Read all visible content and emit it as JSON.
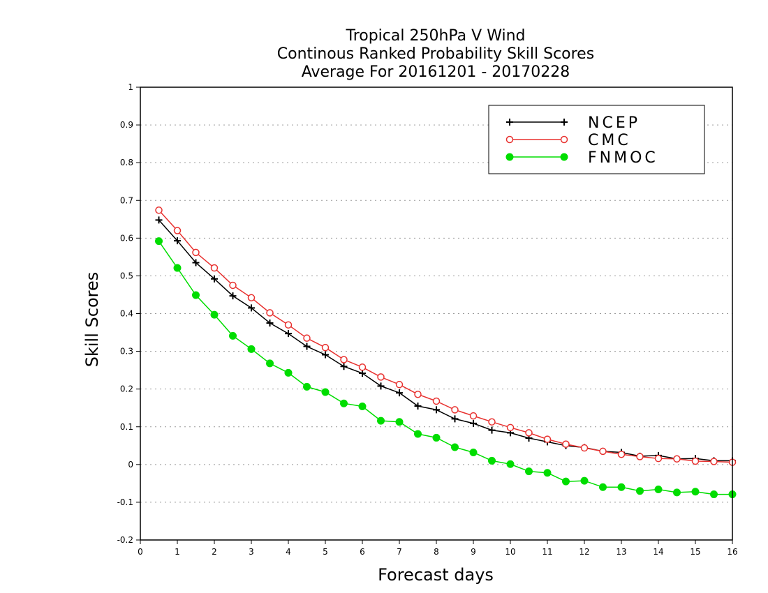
{
  "chart_data": {
    "type": "line",
    "title": [
      "Tropical 250hPa V Wind",
      "Continous Ranked Probability Skill Scores",
      "Average For 20161201 - 20170228"
    ],
    "xlabel": "Forecast days",
    "ylabel": "Skill Scores",
    "xlim": [
      0,
      16
    ],
    "ylim": [
      -0.2,
      1
    ],
    "x_ticks": [
      "0",
      "1",
      "2",
      "3",
      "4",
      "5",
      "6",
      "7",
      "8",
      "9",
      "10",
      "11",
      "12",
      "13",
      "14",
      "15",
      "16"
    ],
    "y_ticks": [
      "-0.2",
      "-0.1",
      "0",
      "0.1",
      "0.2",
      "0.3",
      "0.4",
      "0.5",
      "0.6",
      "0.7",
      "0.8",
      "0.9",
      "1"
    ],
    "y_grid": true,
    "legend_position": "top-right",
    "x": [
      0.5,
      1,
      1.5,
      2,
      2.5,
      3,
      3.5,
      4,
      4.5,
      5,
      5.5,
      6,
      6.5,
      7,
      7.5,
      8,
      8.5,
      9,
      9.5,
      10,
      10.5,
      11,
      11.5,
      12,
      12.5,
      13,
      13.5,
      14,
      14.5,
      15,
      15.5,
      16
    ],
    "series": [
      {
        "name": "NCEP",
        "color": "#000000",
        "marker": "plus",
        "values": [
          0.648,
          0.593,
          0.535,
          0.492,
          0.447,
          0.415,
          0.375,
          0.347,
          0.313,
          0.291,
          0.26,
          0.242,
          0.208,
          0.19,
          0.155,
          0.145,
          0.121,
          0.109,
          0.091,
          0.084,
          0.07,
          0.06,
          0.05,
          0.045,
          0.035,
          0.032,
          0.022,
          0.024,
          0.015,
          0.016,
          0.01,
          0.01
        ]
      },
      {
        "name": "CMC",
        "color": "#e8312f",
        "marker": "open-circle",
        "values": [
          0.674,
          0.62,
          0.562,
          0.521,
          0.475,
          0.442,
          0.402,
          0.37,
          0.335,
          0.31,
          0.278,
          0.258,
          0.232,
          0.212,
          0.186,
          0.168,
          0.145,
          0.129,
          0.113,
          0.098,
          0.084,
          0.067,
          0.054,
          0.044,
          0.035,
          0.027,
          0.021,
          0.016,
          0.015,
          0.009,
          0.008,
          0.006
        ]
      },
      {
        "name": "FNMOC",
        "color": "#00dd00",
        "marker": "filled-circle",
        "values": [
          0.592,
          0.521,
          0.449,
          0.397,
          0.341,
          0.306,
          0.268,
          0.243,
          0.206,
          0.192,
          0.162,
          0.154,
          0.116,
          0.113,
          0.081,
          0.071,
          0.046,
          0.032,
          0.01,
          0.001,
          -0.018,
          -0.022,
          -0.045,
          -0.043,
          -0.06,
          -0.06,
          -0.07,
          -0.066,
          -0.074,
          -0.072,
          -0.079,
          -0.079
        ]
      }
    ]
  }
}
